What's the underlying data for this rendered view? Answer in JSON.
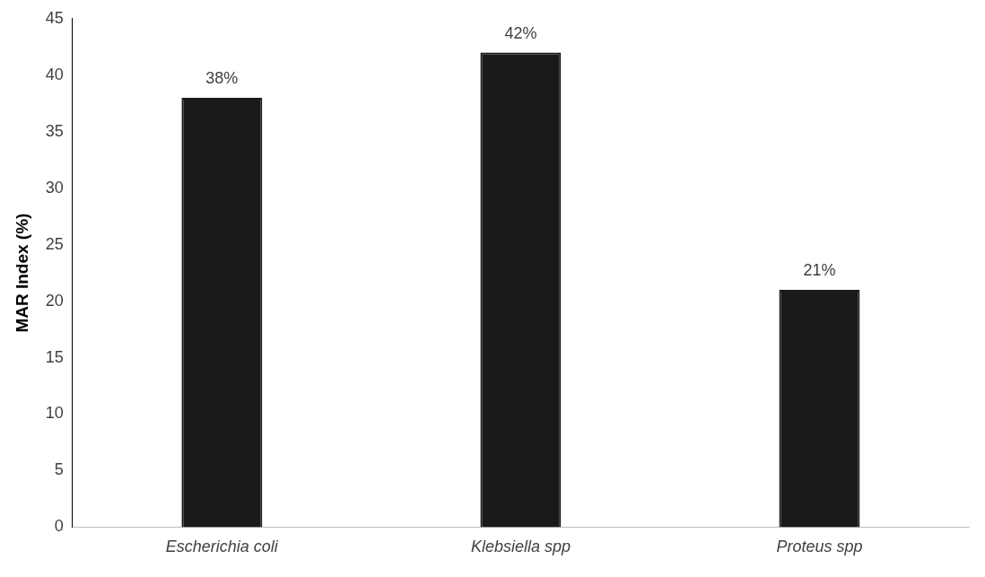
{
  "chart_data": {
    "type": "bar",
    "ylabel": "MAR Index (%)",
    "categories": [
      "Escherichia coli",
      "Klebsiella spp",
      "Proteus spp"
    ],
    "values": [
      38,
      42,
      21
    ],
    "value_labels": [
      "38%",
      "42%",
      "21%"
    ],
    "color": "#1a1a1a",
    "ylim": [
      0,
      45
    ],
    "yticks": [
      0,
      5,
      10,
      15,
      20,
      25,
      30,
      35,
      40,
      45
    ],
    "grid": false,
    "legend": false
  }
}
